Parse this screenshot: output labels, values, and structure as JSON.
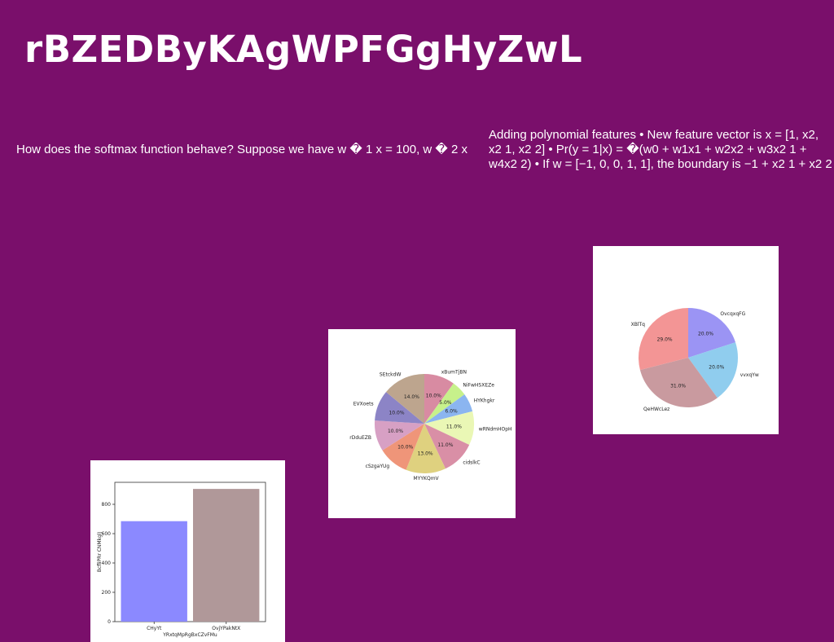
{
  "page": {
    "title": "rBZEDByKAgWPFGgHyZwL",
    "text_left": "How does the softmax function behave? Suppose we have w � 1 x = 100, w � 2 x",
    "text_right": "Adding polynomial features • New feature vector is x = [1, x2, x2 1, x2 2] • Pr(y = 1|x) = �(w0 + w1x1 + w2x2 + w3x2 1 + w4x2 2) • If w = [−1, 0, 0, 1, 1], the boundary is −1 + x2 1 + x2 2 = 0"
  },
  "chart_data": [
    {
      "type": "pie",
      "labels": [
        "xBumTjBN",
        "NiFwHSXEZe",
        "HYKhgkr",
        "wRNdmHOpH",
        "cidslkC",
        "MYYKQmV",
        "cSzgaYUg",
        "rDduEZB",
        "EVXoets",
        "SEtckdW"
      ],
      "values": [
        10,
        5,
        6,
        11,
        11,
        13,
        10,
        10,
        10,
        14
      ],
      "value_labels": [
        "10.0%",
        "5.0%",
        "6.0%",
        "11.0%",
        "11.0%",
        "13.0%",
        "10.0%",
        "10.0%",
        "10.0%",
        "14.0%"
      ],
      "colors": [
        "#d88ba2",
        "#c7f18b",
        "#8bb5f0",
        "#eaf7b5",
        "#d98fa6",
        "#dfd17f",
        "#ef9579",
        "#d7a0c4",
        "#8c84c6",
        "#bda58e"
      ],
      "start_angle": 90,
      "direction": "clockwise"
    },
    {
      "type": "pie",
      "labels": [
        "OvcqxqFG",
        "vvxqYw",
        "QeHWcLez",
        "XBlTq"
      ],
      "values": [
        20,
        20,
        31,
        29
      ],
      "value_labels": [
        "20.0%",
        "20.0%",
        "31.0%",
        "29.0%"
      ],
      "colors": [
        "#9b94f4",
        "#90cdee",
        "#c99a9f",
        "#f39595"
      ],
      "start_angle": 90,
      "direction": "clockwise"
    },
    {
      "type": "bar",
      "categories": [
        "CHyYt",
        "OvjYPakNtX"
      ],
      "values": [
        685,
        905
      ],
      "colors": [
        "#8b89ff",
        "#b09899"
      ],
      "xlabel": "YRxtqMpRgBxCZvFMu",
      "ylabel": "BcfliPRr CNMkglJ",
      "ylim": [
        0,
        950
      ],
      "yticks": [
        0,
        200,
        400,
        600,
        800
      ]
    }
  ]
}
